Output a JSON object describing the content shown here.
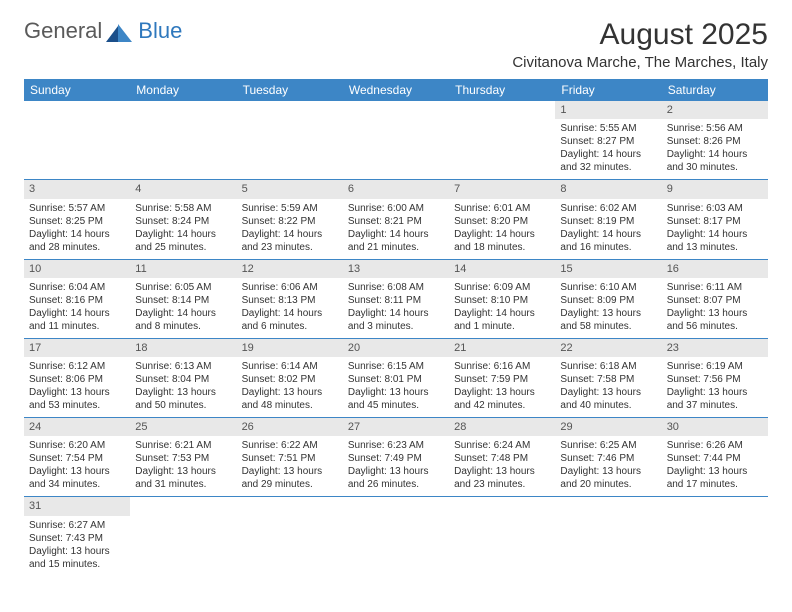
{
  "logo": {
    "text1": "General",
    "text2": "Blue"
  },
  "title": "August 2025",
  "location": "Civitanova Marche, The Marches, Italy",
  "colors": {
    "header_bg": "#3d86c6",
    "header_text": "#ffffff",
    "daynum_bg": "#e8e8e8",
    "row_border": "#3d86c6",
    "logo_gray": "#5a5a5a",
    "logo_blue": "#2f78bd",
    "body_text": "#333333",
    "page_bg": "#ffffff"
  },
  "fonts": {
    "title_size": 30,
    "location_size": 15,
    "header_size": 12,
    "cell_size": 10
  },
  "weekdays": [
    "Sunday",
    "Monday",
    "Tuesday",
    "Wednesday",
    "Thursday",
    "Friday",
    "Saturday"
  ],
  "weeks": [
    [
      null,
      null,
      null,
      null,
      null,
      {
        "n": "1",
        "sr": "Sunrise: 5:55 AM",
        "ss": "Sunset: 8:27 PM",
        "d1": "Daylight: 14 hours",
        "d2": "and 32 minutes."
      },
      {
        "n": "2",
        "sr": "Sunrise: 5:56 AM",
        "ss": "Sunset: 8:26 PM",
        "d1": "Daylight: 14 hours",
        "d2": "and 30 minutes."
      }
    ],
    [
      {
        "n": "3",
        "sr": "Sunrise: 5:57 AM",
        "ss": "Sunset: 8:25 PM",
        "d1": "Daylight: 14 hours",
        "d2": "and 28 minutes."
      },
      {
        "n": "4",
        "sr": "Sunrise: 5:58 AM",
        "ss": "Sunset: 8:24 PM",
        "d1": "Daylight: 14 hours",
        "d2": "and 25 minutes."
      },
      {
        "n": "5",
        "sr": "Sunrise: 5:59 AM",
        "ss": "Sunset: 8:22 PM",
        "d1": "Daylight: 14 hours",
        "d2": "and 23 minutes."
      },
      {
        "n": "6",
        "sr": "Sunrise: 6:00 AM",
        "ss": "Sunset: 8:21 PM",
        "d1": "Daylight: 14 hours",
        "d2": "and 21 minutes."
      },
      {
        "n": "7",
        "sr": "Sunrise: 6:01 AM",
        "ss": "Sunset: 8:20 PM",
        "d1": "Daylight: 14 hours",
        "d2": "and 18 minutes."
      },
      {
        "n": "8",
        "sr": "Sunrise: 6:02 AM",
        "ss": "Sunset: 8:19 PM",
        "d1": "Daylight: 14 hours",
        "d2": "and 16 minutes."
      },
      {
        "n": "9",
        "sr": "Sunrise: 6:03 AM",
        "ss": "Sunset: 8:17 PM",
        "d1": "Daylight: 14 hours",
        "d2": "and 13 minutes."
      }
    ],
    [
      {
        "n": "10",
        "sr": "Sunrise: 6:04 AM",
        "ss": "Sunset: 8:16 PM",
        "d1": "Daylight: 14 hours",
        "d2": "and 11 minutes."
      },
      {
        "n": "11",
        "sr": "Sunrise: 6:05 AM",
        "ss": "Sunset: 8:14 PM",
        "d1": "Daylight: 14 hours",
        "d2": "and 8 minutes."
      },
      {
        "n": "12",
        "sr": "Sunrise: 6:06 AM",
        "ss": "Sunset: 8:13 PM",
        "d1": "Daylight: 14 hours",
        "d2": "and 6 minutes."
      },
      {
        "n": "13",
        "sr": "Sunrise: 6:08 AM",
        "ss": "Sunset: 8:11 PM",
        "d1": "Daylight: 14 hours",
        "d2": "and 3 minutes."
      },
      {
        "n": "14",
        "sr": "Sunrise: 6:09 AM",
        "ss": "Sunset: 8:10 PM",
        "d1": "Daylight: 14 hours",
        "d2": "and 1 minute."
      },
      {
        "n": "15",
        "sr": "Sunrise: 6:10 AM",
        "ss": "Sunset: 8:09 PM",
        "d1": "Daylight: 13 hours",
        "d2": "and 58 minutes."
      },
      {
        "n": "16",
        "sr": "Sunrise: 6:11 AM",
        "ss": "Sunset: 8:07 PM",
        "d1": "Daylight: 13 hours",
        "d2": "and 56 minutes."
      }
    ],
    [
      {
        "n": "17",
        "sr": "Sunrise: 6:12 AM",
        "ss": "Sunset: 8:06 PM",
        "d1": "Daylight: 13 hours",
        "d2": "and 53 minutes."
      },
      {
        "n": "18",
        "sr": "Sunrise: 6:13 AM",
        "ss": "Sunset: 8:04 PM",
        "d1": "Daylight: 13 hours",
        "d2": "and 50 minutes."
      },
      {
        "n": "19",
        "sr": "Sunrise: 6:14 AM",
        "ss": "Sunset: 8:02 PM",
        "d1": "Daylight: 13 hours",
        "d2": "and 48 minutes."
      },
      {
        "n": "20",
        "sr": "Sunrise: 6:15 AM",
        "ss": "Sunset: 8:01 PM",
        "d1": "Daylight: 13 hours",
        "d2": "and 45 minutes."
      },
      {
        "n": "21",
        "sr": "Sunrise: 6:16 AM",
        "ss": "Sunset: 7:59 PM",
        "d1": "Daylight: 13 hours",
        "d2": "and 42 minutes."
      },
      {
        "n": "22",
        "sr": "Sunrise: 6:18 AM",
        "ss": "Sunset: 7:58 PM",
        "d1": "Daylight: 13 hours",
        "d2": "and 40 minutes."
      },
      {
        "n": "23",
        "sr": "Sunrise: 6:19 AM",
        "ss": "Sunset: 7:56 PM",
        "d1": "Daylight: 13 hours",
        "d2": "and 37 minutes."
      }
    ],
    [
      {
        "n": "24",
        "sr": "Sunrise: 6:20 AM",
        "ss": "Sunset: 7:54 PM",
        "d1": "Daylight: 13 hours",
        "d2": "and 34 minutes."
      },
      {
        "n": "25",
        "sr": "Sunrise: 6:21 AM",
        "ss": "Sunset: 7:53 PM",
        "d1": "Daylight: 13 hours",
        "d2": "and 31 minutes."
      },
      {
        "n": "26",
        "sr": "Sunrise: 6:22 AM",
        "ss": "Sunset: 7:51 PM",
        "d1": "Daylight: 13 hours",
        "d2": "and 29 minutes."
      },
      {
        "n": "27",
        "sr": "Sunrise: 6:23 AM",
        "ss": "Sunset: 7:49 PM",
        "d1": "Daylight: 13 hours",
        "d2": "and 26 minutes."
      },
      {
        "n": "28",
        "sr": "Sunrise: 6:24 AM",
        "ss": "Sunset: 7:48 PM",
        "d1": "Daylight: 13 hours",
        "d2": "and 23 minutes."
      },
      {
        "n": "29",
        "sr": "Sunrise: 6:25 AM",
        "ss": "Sunset: 7:46 PM",
        "d1": "Daylight: 13 hours",
        "d2": "and 20 minutes."
      },
      {
        "n": "30",
        "sr": "Sunrise: 6:26 AM",
        "ss": "Sunset: 7:44 PM",
        "d1": "Daylight: 13 hours",
        "d2": "and 17 minutes."
      }
    ],
    [
      {
        "n": "31",
        "sr": "Sunrise: 6:27 AM",
        "ss": "Sunset: 7:43 PM",
        "d1": "Daylight: 13 hours",
        "d2": "and 15 minutes."
      },
      null,
      null,
      null,
      null,
      null,
      null
    ]
  ]
}
